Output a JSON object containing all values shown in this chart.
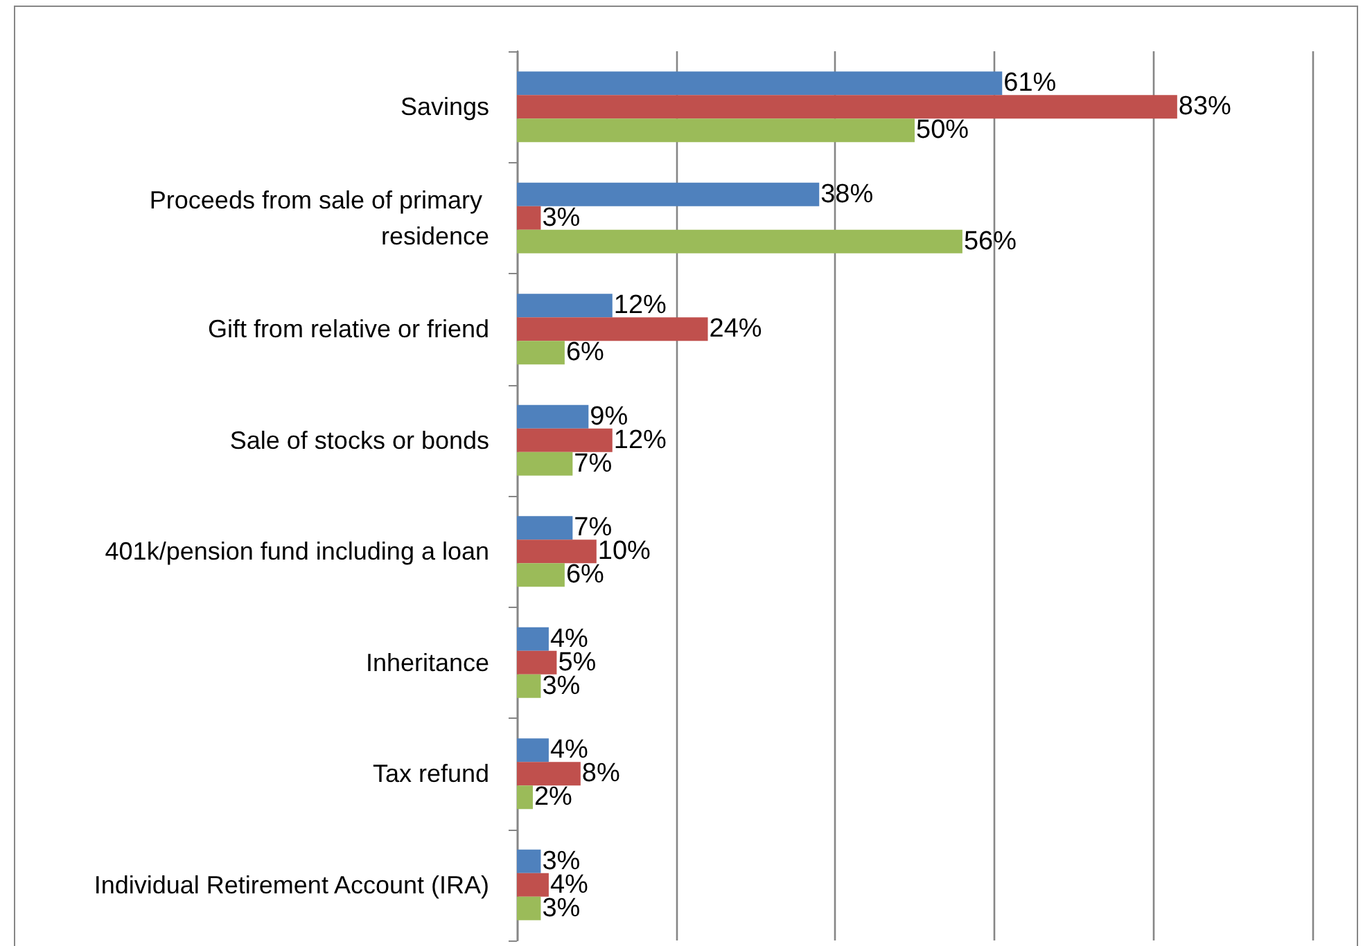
{
  "chart_data": {
    "type": "bar",
    "orientation": "horizontal",
    "categories": [
      "Savings",
      "Proceeds from sale of primary residence",
      "Gift from relative or friend",
      "Sale of stocks or bonds",
      "401k/pension fund including a loan",
      "Inheritance",
      "Tax refund",
      "Individual Retirement Account (IRA)"
    ],
    "series": [
      {
        "color": "#4f81bd",
        "values": [
          61,
          38,
          12,
          9,
          7,
          4,
          4,
          3
        ],
        "value_labels": [
          "61%",
          "38%",
          "12%",
          "9%",
          "7%",
          "4%",
          "4%",
          "3%"
        ]
      },
      {
        "color": "#c0504d",
        "values": [
          83,
          3,
          24,
          12,
          10,
          5,
          8,
          4
        ],
        "value_labels": [
          "83%",
          "3%",
          "24%",
          "12%",
          "10%",
          "5%",
          "8%",
          "4%"
        ]
      },
      {
        "color": "#9bbb59",
        "values": [
          50,
          56,
          6,
          7,
          6,
          3,
          2,
          3
        ],
        "value_labels": [
          "50%",
          "56%",
          "6%",
          "7%",
          "6%",
          "3%",
          "2%",
          "3%"
        ]
      }
    ],
    "xlim": [
      0,
      100
    ],
    "xticks": [
      {
        "value": 0,
        "label": null
      },
      {
        "value": 20,
        "label": null
      },
      {
        "value": 40,
        "label": null
      },
      {
        "value": 60,
        "label": null
      },
      {
        "value": 80,
        "label": null
      },
      {
        "value": 100,
        "label": null
      }
    ],
    "grid": "x",
    "tick_labels": "y"
  }
}
